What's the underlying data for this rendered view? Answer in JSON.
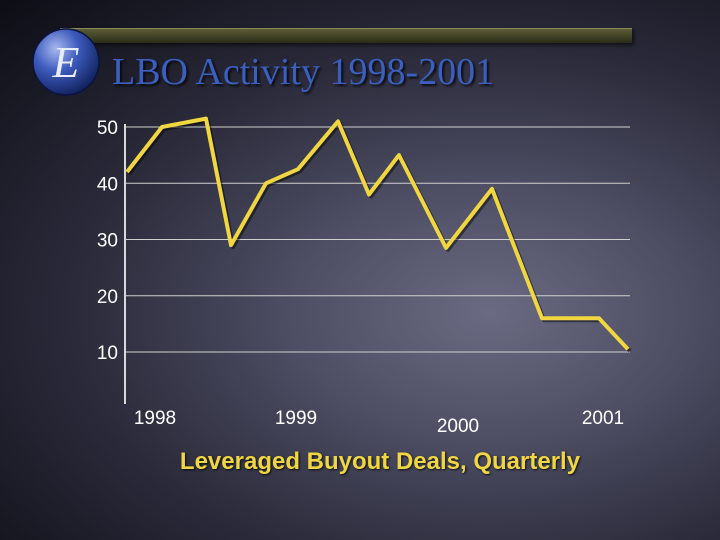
{
  "slide": {
    "title": "LBO Activity 1998-2001",
    "logo_letter": "E"
  },
  "colors": {
    "line": "#f0d640",
    "title": "#3b5fc0",
    "caption": "#f0d640",
    "gridline": "#d0d0d0",
    "tick_text": "#ffffff"
  },
  "chart_data": {
    "type": "line",
    "title": "",
    "xlabel": "Leveraged Buyout Deals, Quarterly",
    "ylabel": "",
    "ylim": [
      0,
      50
    ],
    "yticks": [
      10,
      20,
      30,
      40,
      50
    ],
    "grid": true,
    "x_tick_labels": [
      "1998",
      "1999",
      "2000",
      "2001"
    ],
    "series": [
      {
        "values": [
          42,
          50,
          51.5,
          29,
          40,
          42.5,
          51,
          38,
          45,
          28.5,
          39,
          16,
          16,
          10.5
        ]
      }
    ]
  }
}
